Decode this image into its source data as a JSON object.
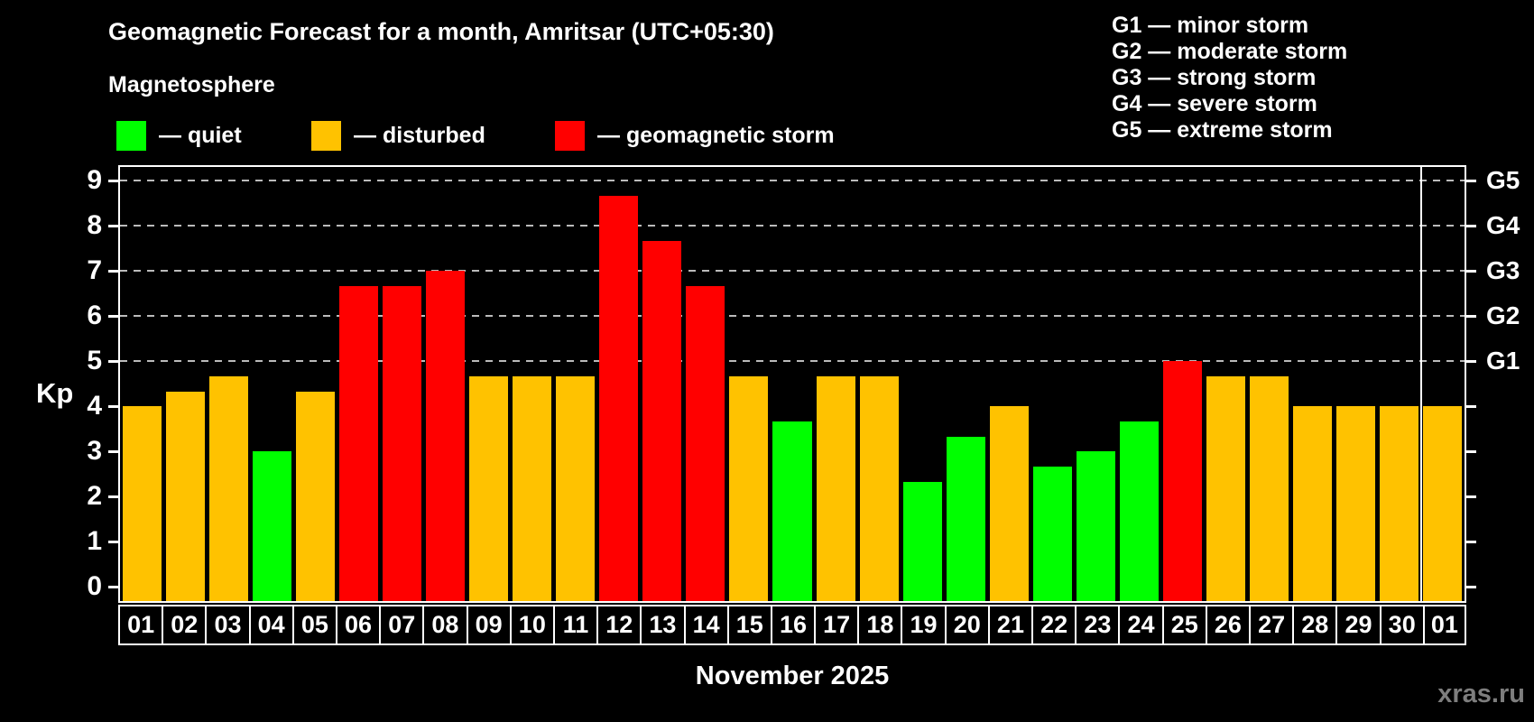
{
  "title": "Geomagnetic Forecast for a month, Amritsar (UTC+05:30)",
  "subtitle": "Magnetosphere",
  "legend": {
    "items": [
      {
        "key": "quiet",
        "label": "— quiet",
        "color": "#00ff00"
      },
      {
        "key": "disturbed",
        "label": "— disturbed",
        "color": "#ffc200"
      },
      {
        "key": "storm",
        "label": "— geomagnetic storm",
        "color": "#ff0000"
      }
    ]
  },
  "storm_scale_legend": [
    "G1 — minor storm",
    "G2 — moderate storm",
    "G3 — strong storm",
    "G4 — severe storm",
    "G5 — extreme storm"
  ],
  "axis": {
    "y_label": "Kp",
    "y_ticks": [
      0,
      1,
      2,
      3,
      4,
      5,
      6,
      7,
      8,
      9
    ],
    "right_labels": [
      {
        "label": "G1",
        "kp": 5
      },
      {
        "label": "G2",
        "kp": 6
      },
      {
        "label": "G3",
        "kp": 7
      },
      {
        "label": "G4",
        "kp": 8
      },
      {
        "label": "G5",
        "kp": 9
      }
    ],
    "x_label": "November 2025"
  },
  "watermark": "xras.ru",
  "chart_data": {
    "type": "bar",
    "title": "Geomagnetic Forecast for a month, Amritsar (UTC+05:30)",
    "xlabel": "November 2025",
    "ylabel": "Kp",
    "ylim": [
      0,
      9
    ],
    "grid": "dashed horizontal lines at Kp 5-9 only",
    "gridlines_kp": [
      5,
      6,
      7,
      8,
      9
    ],
    "categories": [
      "01",
      "02",
      "03",
      "04",
      "05",
      "06",
      "07",
      "08",
      "09",
      "10",
      "11",
      "12",
      "13",
      "14",
      "15",
      "16",
      "17",
      "18",
      "19",
      "20",
      "21",
      "22",
      "23",
      "24",
      "25",
      "26",
      "27",
      "28",
      "29",
      "30",
      "01"
    ],
    "values": [
      4.0,
      4.33,
      4.67,
      3.0,
      4.33,
      6.67,
      6.67,
      7.0,
      4.67,
      4.67,
      4.67,
      8.67,
      7.67,
      6.67,
      4.67,
      3.67,
      4.67,
      4.67,
      2.33,
      3.33,
      4.0,
      2.67,
      3.0,
      3.67,
      5.0,
      4.67,
      4.67,
      4.0,
      4.0,
      4.0,
      4.0
    ],
    "statuses": [
      "disturbed",
      "disturbed",
      "disturbed",
      "quiet",
      "disturbed",
      "storm",
      "storm",
      "storm",
      "disturbed",
      "disturbed",
      "disturbed",
      "storm",
      "storm",
      "storm",
      "disturbed",
      "quiet",
      "disturbed",
      "disturbed",
      "quiet",
      "quiet",
      "disturbed",
      "quiet",
      "quiet",
      "quiet",
      "storm",
      "disturbed",
      "disturbed",
      "disturbed",
      "disturbed",
      "disturbed",
      "disturbed"
    ],
    "colors": {
      "quiet": "#00ff00",
      "disturbed": "#ffc200",
      "storm": "#ff0000"
    },
    "month_separator_before_index": 30
  }
}
